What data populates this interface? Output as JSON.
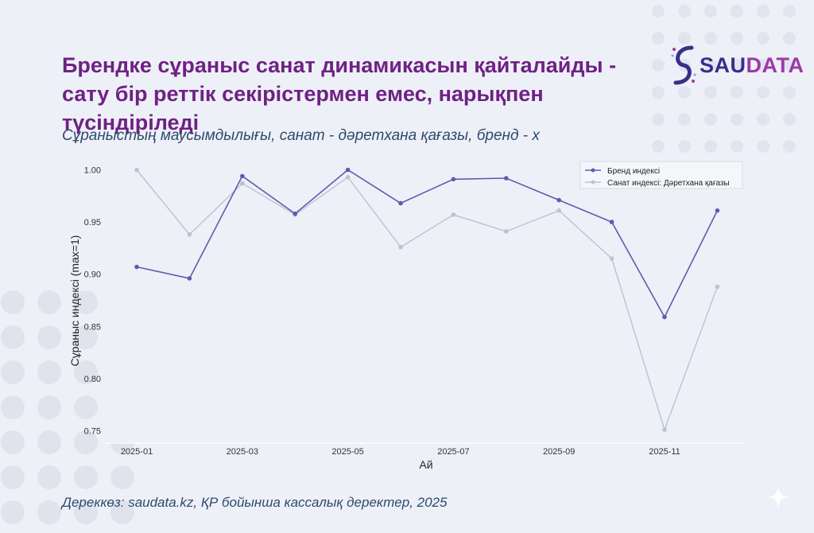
{
  "header": {
    "title": "Брендке сұраныс санат динамикасын қайталайды - сату бір реттік секірістермен емес, нарықпен түсіндіріледі",
    "subtitle": "Сұраныстың маусымдылығы, санат - дәретхана қағазы, бренд - х"
  },
  "logo": {
    "part1": "SAU",
    "part2": "DATA"
  },
  "footer": {
    "source": "Дереккөз: saudata.kz, ҚР бойынша кассалық деректер, 2025"
  },
  "colors": {
    "brand": "#5e5bb0",
    "category": "#b8c3d4",
    "title": "#6f2184",
    "subtitle": "#2e4a6e"
  },
  "chart_data": {
    "type": "line",
    "x": [
      "2025-01",
      "2025-02",
      "2025-03",
      "2025-04",
      "2025-05",
      "2025-06",
      "2025-07",
      "2025-08",
      "2025-09",
      "2025-10",
      "2025-11",
      "2025-12"
    ],
    "x_tick_labels": [
      "2025-01",
      "2025-03",
      "2025-05",
      "2025-07",
      "2025-09",
      "2025-11"
    ],
    "xlabel": "Ай",
    "ylabel": "Сұраныс индексі (max=1)",
    "ylim": [
      0.74,
      1.01
    ],
    "y_ticks": [
      "0.75",
      "0.80",
      "0.85",
      "0.90",
      "0.95",
      "1.00"
    ],
    "grid": false,
    "legend_position": "top-right",
    "series": [
      {
        "name": "Бренд индексі",
        "color": "#5e5bb0",
        "values": [
          0.907,
          0.896,
          0.994,
          0.958,
          1.0,
          0.968,
          0.991,
          0.992,
          0.971,
          0.95,
          0.859,
          0.961
        ]
      },
      {
        "name": "Санат индексі: Дәретхана қағазы",
        "color": "#b8c3d4",
        "values": [
          1.0,
          0.938,
          0.987,
          0.957,
          0.993,
          0.926,
          0.957,
          0.941,
          0.961,
          0.915,
          0.751,
          0.888
        ]
      }
    ]
  }
}
